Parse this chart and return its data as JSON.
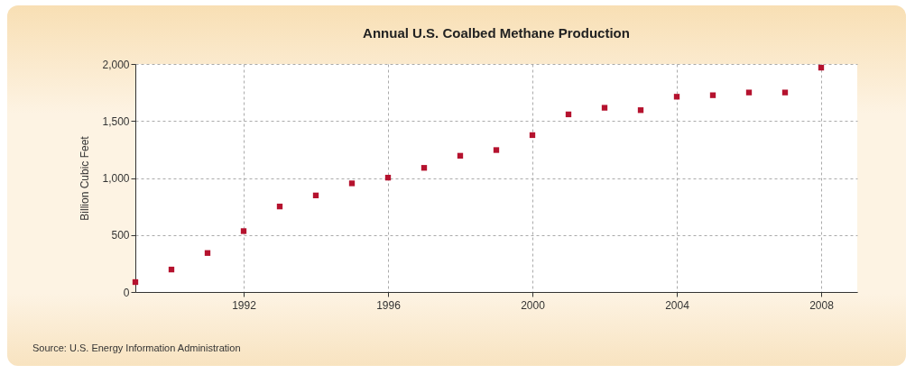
{
  "chart_data": {
    "type": "scatter",
    "title": "Annual U.S. Coalbed Methane Production",
    "ylabel": "Billion Cubic Feet",
    "x": [
      1989,
      1990,
      1991,
      1992,
      1993,
      1994,
      1995,
      1996,
      1997,
      1998,
      1999,
      2000,
      2001,
      2002,
      2003,
      2004,
      2005,
      2006,
      2007,
      2008
    ],
    "series": [
      {
        "color": "#b5122e",
        "values": [
          87,
          197,
          342,
          534,
          750,
          847,
          953,
          1003,
          1089,
          1195,
          1245,
          1376,
          1558,
          1616,
          1595,
          1713,
          1726,
          1750,
          1750,
          1968
        ]
      }
    ],
    "xlim": [
      1989,
      2009
    ],
    "xticks": [
      1992,
      1996,
      2000,
      2004,
      2008
    ],
    "ylim": [
      0,
      2000
    ],
    "yticks": [
      0,
      {
        "value": 500,
        "label": "500"
      },
      {
        "value": 1000,
        "label": "1,000"
      },
      {
        "value": 1500,
        "label": "1,500"
      },
      {
        "value": 2000,
        "label": "2,000"
      }
    ],
    "grid": true,
    "marker": "square",
    "annotations": [
      "Source: U.S. Energy Information Administration"
    ]
  }
}
